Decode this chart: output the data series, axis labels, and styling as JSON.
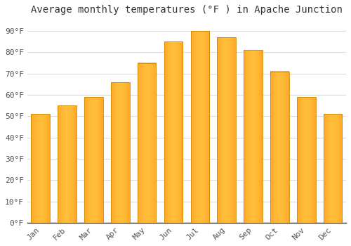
{
  "title": "Average monthly temperatures (°F ) in Apache Junction",
  "months": [
    "Jan",
    "Feb",
    "Mar",
    "Apr",
    "May",
    "Jun",
    "Jul",
    "Aug",
    "Sep",
    "Oct",
    "Nov",
    "Dec"
  ],
  "values": [
    51,
    55,
    59,
    66,
    75,
    85,
    90,
    87,
    81,
    71,
    59,
    51
  ],
  "bar_color_main": "#FFA726",
  "bar_color_light": "#FFD54F",
  "bar_color_edge": "#E65100",
  "ylim": [
    0,
    95
  ],
  "yticks": [
    0,
    10,
    20,
    30,
    40,
    50,
    60,
    70,
    80,
    90
  ],
  "ytick_labels": [
    "0°F",
    "10°F",
    "20°F",
    "30°F",
    "40°F",
    "50°F",
    "60°F",
    "70°F",
    "80°F",
    "90°F"
  ],
  "background_color": "#FFFFFF",
  "grid_color": "#DDDDDD",
  "title_fontsize": 10,
  "tick_fontsize": 8,
  "bar_edge_color": "#CC8800"
}
